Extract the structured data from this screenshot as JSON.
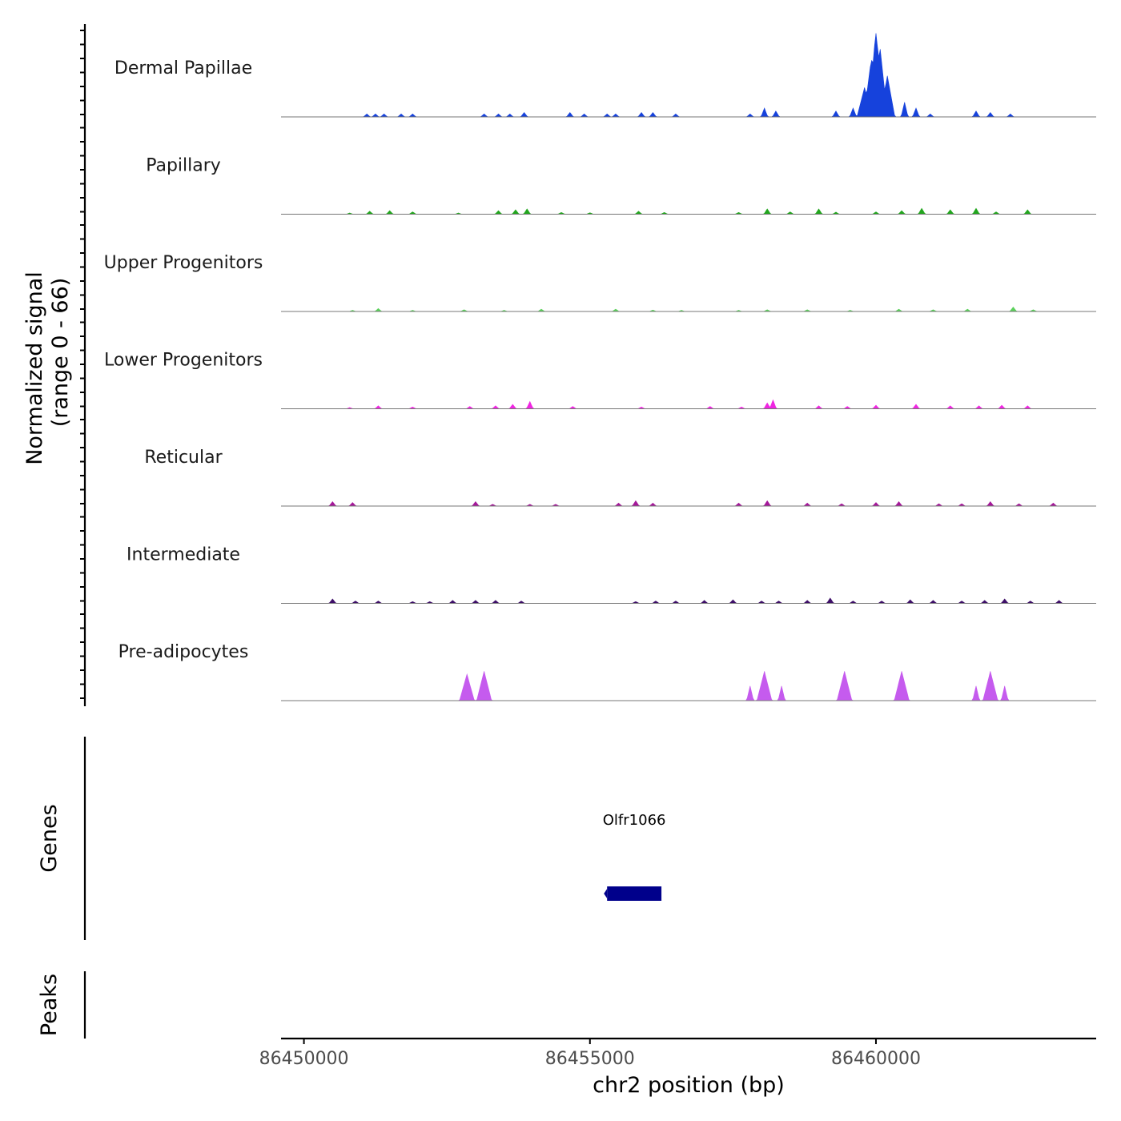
{
  "chart_data": {
    "type": "area",
    "title": "",
    "region": {
      "chromosome": "chr2",
      "start": 86449600,
      "end": 86463850
    },
    "xlabel": "chr2 position (bp)",
    "x_ticks": [
      86450000,
      86455000,
      86460000
    ],
    "x_tick_labels": [
      "86450000",
      "86455000",
      "86460000"
    ],
    "coverage_panel": {
      "ylabel_line1": "Normalized signal",
      "ylabel_line2": "(range 0 - 66)",
      "ylim": [
        0,
        66
      ],
      "tracks": [
        {
          "name": "Dermal Papillae",
          "color": "#1642DC",
          "peak_y": 66,
          "peaks": [
            [
              86451100,
              1
            ],
            [
              86451250,
              1
            ],
            [
              86451400,
              1
            ],
            [
              86451700,
              1
            ],
            [
              86451900,
              1
            ],
            [
              86453150,
              1
            ],
            [
              86453400,
              1
            ],
            [
              86453600,
              1
            ],
            [
              86453850,
              1.5
            ],
            [
              86454650,
              1.5
            ],
            [
              86454900,
              1
            ],
            [
              86455300,
              1
            ],
            [
              86455450,
              1
            ],
            [
              86455900,
              1.5
            ],
            [
              86456100,
              1.5
            ],
            [
              86456500,
              1
            ],
            [
              86457800,
              1
            ],
            [
              86458050,
              3
            ],
            [
              86458250,
              2
            ],
            [
              86459300,
              2
            ],
            [
              86459600,
              3
            ],
            [
              86459800,
              10
            ],
            [
              86459920,
              20
            ],
            [
              86460000,
              30
            ],
            [
              86460070,
              24
            ],
            [
              86460200,
              14
            ],
            [
              86460500,
              5
            ],
            [
              86460700,
              3
            ],
            [
              86460950,
              1
            ],
            [
              86461750,
              2
            ],
            [
              86462000,
              1.5
            ],
            [
              86462350,
              1
            ]
          ]
        },
        {
          "name": "Papillary",
          "color": "#22A61E",
          "peak_y": 66,
          "peaks": [
            [
              86450800,
              0.4
            ],
            [
              86451150,
              1
            ],
            [
              86451500,
              1.2
            ],
            [
              86451900,
              0.8
            ],
            [
              86452700,
              0.4
            ],
            [
              86453400,
              1.2
            ],
            [
              86453700,
              1.5
            ],
            [
              86453900,
              1.8
            ],
            [
              86454500,
              0.6
            ],
            [
              86455000,
              0.5
            ],
            [
              86455850,
              1
            ],
            [
              86456300,
              0.6
            ],
            [
              86457600,
              0.6
            ],
            [
              86458100,
              1.8
            ],
            [
              86458500,
              0.8
            ],
            [
              86459000,
              1.8
            ],
            [
              86459300,
              0.7
            ],
            [
              86460000,
              0.8
            ],
            [
              86460450,
              1.2
            ],
            [
              86460800,
              2
            ],
            [
              86461300,
              1.5
            ],
            [
              86461750,
              2
            ],
            [
              86462100,
              0.8
            ],
            [
              86462650,
              1.5
            ]
          ]
        },
        {
          "name": "Upper Progenitors",
          "color": "#5CD15C",
          "peak_y": 66,
          "peaks": [
            [
              86450850,
              0.4
            ],
            [
              86451300,
              1
            ],
            [
              86451900,
              0.4
            ],
            [
              86452800,
              0.6
            ],
            [
              86453500,
              0.4
            ],
            [
              86454150,
              0.8
            ],
            [
              86455450,
              0.8
            ],
            [
              86456100,
              0.5
            ],
            [
              86456600,
              0.4
            ],
            [
              86457600,
              0.4
            ],
            [
              86458100,
              0.6
            ],
            [
              86458800,
              0.6
            ],
            [
              86459550,
              0.4
            ],
            [
              86460400,
              0.8
            ],
            [
              86461000,
              0.6
            ],
            [
              86461600,
              0.8
            ],
            [
              86462400,
              1.5
            ],
            [
              86462750,
              0.6
            ]
          ]
        },
        {
          "name": "Lower Progenitors",
          "color": "#F026E2",
          "peak_y": 66,
          "peaks": [
            [
              86450800,
              0.4
            ],
            [
              86451300,
              1
            ],
            [
              86451900,
              0.6
            ],
            [
              86452900,
              0.8
            ],
            [
              86453350,
              1
            ],
            [
              86453650,
              1.5
            ],
            [
              86453950,
              2.5
            ],
            [
              86454700,
              0.8
            ],
            [
              86455900,
              0.6
            ],
            [
              86457100,
              0.8
            ],
            [
              86457650,
              0.6
            ],
            [
              86458100,
              2
            ],
            [
              86458200,
              3
            ],
            [
              86459000,
              1
            ],
            [
              86459500,
              0.8
            ],
            [
              86460000,
              1.2
            ],
            [
              86460700,
              1.5
            ],
            [
              86461300,
              1
            ],
            [
              86461800,
              1
            ],
            [
              86462200,
              1.2
            ],
            [
              86462650,
              1
            ]
          ]
        },
        {
          "name": "Reticular",
          "color": "#A5189A",
          "peak_y": 66,
          "peaks": [
            [
              86450500,
              1.5
            ],
            [
              86450850,
              1.2
            ],
            [
              86453000,
              1.5
            ],
            [
              86453300,
              0.6
            ],
            [
              86453950,
              0.6
            ],
            [
              86454400,
              0.6
            ],
            [
              86455500,
              1
            ],
            [
              86455800,
              1.8
            ],
            [
              86456100,
              1
            ],
            [
              86457600,
              1
            ],
            [
              86458100,
              1.8
            ],
            [
              86458800,
              1
            ],
            [
              86459400,
              0.8
            ],
            [
              86460000,
              1.2
            ],
            [
              86460400,
              1.5
            ],
            [
              86461100,
              0.8
            ],
            [
              86461500,
              0.8
            ],
            [
              86462000,
              1.5
            ],
            [
              86462500,
              0.8
            ],
            [
              86463100,
              1
            ]
          ]
        },
        {
          "name": "Intermediate",
          "color": "#3E0F68",
          "peak_y": 66,
          "peaks": [
            [
              86450500,
              1.5
            ],
            [
              86450900,
              0.8
            ],
            [
              86451300,
              0.8
            ],
            [
              86451900,
              0.6
            ],
            [
              86452200,
              0.6
            ],
            [
              86452600,
              1
            ],
            [
              86453000,
              1
            ],
            [
              86453350,
              1
            ],
            [
              86453800,
              0.8
            ],
            [
              86455800,
              0.6
            ],
            [
              86456150,
              0.8
            ],
            [
              86456500,
              0.8
            ],
            [
              86457000,
              1
            ],
            [
              86457500,
              1.2
            ],
            [
              86458000,
              0.8
            ],
            [
              86458300,
              0.8
            ],
            [
              86458800,
              1
            ],
            [
              86459200,
              1.8
            ],
            [
              86459600,
              0.8
            ],
            [
              86460100,
              0.8
            ],
            [
              86460600,
              1.2
            ],
            [
              86461000,
              1
            ],
            [
              86461500,
              0.8
            ],
            [
              86461900,
              1
            ],
            [
              86462250,
              1.5
            ],
            [
              86462700,
              0.8
            ],
            [
              86463200,
              1
            ]
          ]
        },
        {
          "name": "Pre-adipocytes",
          "color": "#C55BEE",
          "peak_y": 66,
          "peaks": [
            [
              86452850,
              9
            ],
            [
              86453150,
              10
            ],
            [
              86457800,
              5
            ],
            [
              86458050,
              10
            ],
            [
              86458350,
              5
            ],
            [
              86459450,
              10
            ],
            [
              86460450,
              10
            ],
            [
              86461750,
              5
            ],
            [
              86462000,
              10
            ],
            [
              86462250,
              5
            ]
          ]
        }
      ]
    },
    "genes_panel": {
      "ylabel": "Genes",
      "genes": [
        {
          "name": "Olfr1066",
          "start": 86455300,
          "end": 86456250,
          "strand": "-",
          "color": "#00008B"
        }
      ]
    },
    "peaks_panel": {
      "ylabel": "Peaks",
      "peaks": []
    }
  }
}
